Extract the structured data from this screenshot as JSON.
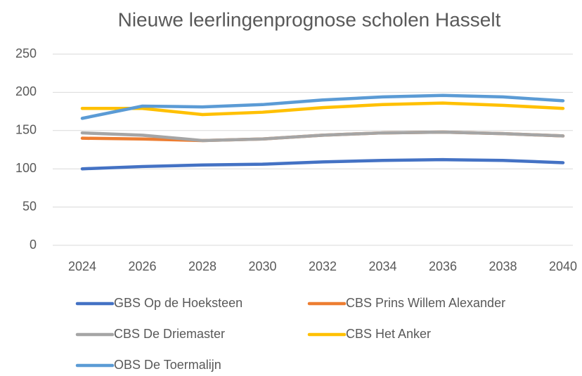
{
  "chart_data": {
    "type": "line",
    "title": "Nieuwe leerlingenprognose scholen Hasselt",
    "categories": [
      "2024",
      "2026",
      "2028",
      "2030",
      "2032",
      "2034",
      "2036",
      "2038",
      "2040"
    ],
    "series": [
      {
        "name": "GBS Op de Hoeksteen",
        "color": "#4472c4",
        "values": [
          100,
          103,
          105,
          106,
          109,
          111,
          112,
          111,
          108
        ]
      },
      {
        "name": "CBS Prins Willem Alexander",
        "color": "#ed7d31",
        "values": [
          140,
          139,
          137,
          139,
          144,
          147,
          148,
          146,
          143
        ]
      },
      {
        "name": "CBS De Driemaster",
        "color": "#a5a5a5",
        "values": [
          147,
          144,
          137,
          139,
          144,
          147,
          148,
          146,
          143
        ]
      },
      {
        "name": "CBS Het Anker",
        "color": "#ffc000",
        "values": [
          179,
          179,
          171,
          174,
          180,
          184,
          186,
          183,
          179
        ]
      },
      {
        "name": "OBS De Toermalijn",
        "color": "#5b9bd5",
        "values": [
          166,
          182,
          181,
          184,
          190,
          194,
          196,
          194,
          189
        ]
      }
    ],
    "ylim": [
      0,
      250
    ],
    "yticks": [
      0,
      50,
      100,
      150,
      200,
      250
    ],
    "grid": true,
    "legend": "bottom"
  }
}
